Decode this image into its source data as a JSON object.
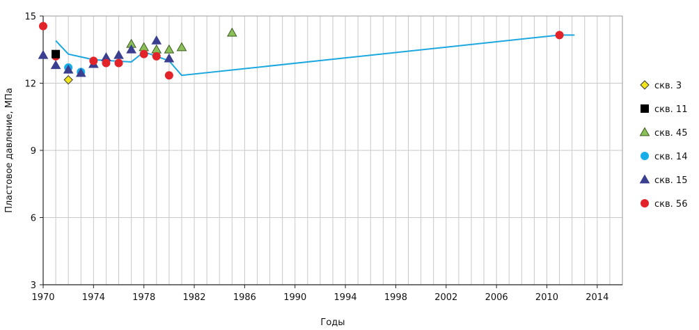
{
  "chart_data": {
    "type": "scatter",
    "xlabel": "Годы",
    "ylabel": "Пластовое давление, МПа",
    "xlim": [
      1970,
      2016
    ],
    "ylim": [
      3,
      15
    ],
    "xticks": [
      1970,
      1974,
      1978,
      1982,
      1986,
      1990,
      1994,
      1998,
      2002,
      2006,
      2010,
      2014
    ],
    "yticks": [
      3,
      6,
      9,
      12,
      15
    ],
    "grid": "vertical minor every 1 year, horizontal at major ticks",
    "legend_position": "right",
    "line": {
      "color": "#1ba7df",
      "points": [
        [
          1971,
          13.9
        ],
        [
          1972,
          13.3
        ],
        [
          1974,
          13.05
        ],
        [
          1977,
          12.95
        ],
        [
          1978,
          13.4
        ],
        [
          1980,
          13.0
        ],
        [
          1981,
          12.35
        ],
        [
          2011,
          14.15
        ],
        [
          2012.2,
          14.15
        ]
      ]
    },
    "series": [
      {
        "name": "скв. 3",
        "marker": "diamond",
        "color": "#f2e51b",
        "stroke": "#333333",
        "points": [
          [
            1972,
            12.15
          ]
        ]
      },
      {
        "name": "скв. 11",
        "marker": "square",
        "color": "#000000",
        "stroke": "#000000",
        "points": [
          [
            1971,
            13.3
          ]
        ]
      },
      {
        "name": "скв. 45",
        "marker": "triangle",
        "color": "#8bbf58",
        "stroke": "#3d5a22",
        "points": [
          [
            1977,
            13.75
          ],
          [
            1978,
            13.6
          ],
          [
            1979,
            13.5
          ],
          [
            1980,
            13.5
          ],
          [
            1981,
            13.6
          ],
          [
            1985,
            14.25
          ]
        ]
      },
      {
        "name": "скв. 14",
        "marker": "circle",
        "color": "#17aee8",
        "stroke": "#17aee8",
        "points": [
          [
            1972,
            12.7
          ],
          [
            1973,
            12.5
          ]
        ]
      },
      {
        "name": "скв. 15",
        "marker": "triangle",
        "color": "#3b3f8f",
        "stroke": "#3b3f8f",
        "points": [
          [
            1970,
            13.25
          ],
          [
            1971,
            12.8
          ],
          [
            1972,
            12.6
          ],
          [
            1973,
            12.45
          ],
          [
            1974,
            12.85
          ],
          [
            1975,
            13.15
          ],
          [
            1976,
            13.25
          ],
          [
            1977,
            13.5
          ],
          [
            1979,
            13.9
          ],
          [
            1980,
            13.1
          ]
        ]
      },
      {
        "name": "скв. 56",
        "marker": "circle",
        "color": "#e3232a",
        "stroke": "#e3232a",
        "points": [
          [
            1970,
            14.55
          ],
          [
            1971,
            13.2
          ],
          [
            1974,
            13.0
          ],
          [
            1975,
            12.9
          ],
          [
            1976,
            12.9
          ],
          [
            1978,
            13.3
          ],
          [
            1979,
            13.2
          ],
          [
            1980,
            12.35
          ],
          [
            2011,
            14.15
          ]
        ]
      }
    ]
  }
}
